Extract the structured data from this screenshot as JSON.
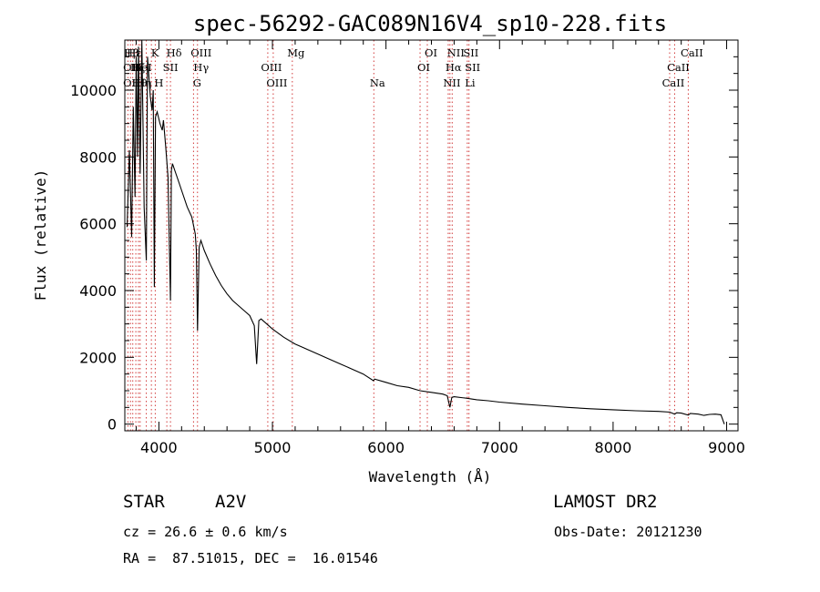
{
  "chart_data": {
    "type": "line",
    "title": "spec-56292-GAC089N16V4_sp10-228.fits",
    "xlabel": "Wavelength (Å)",
    "ylabel": "Flux (relative)",
    "xlim": [
      3700,
      9100
    ],
    "ylim": [
      -200,
      11500
    ],
    "xticks": [
      4000,
      5000,
      6000,
      7000,
      8000,
      9000
    ],
    "yticks": [
      0,
      2000,
      4000,
      6000,
      8000,
      10000
    ],
    "grid": false,
    "legend": "none",
    "colors": {
      "spectrum": "#000000",
      "line_markers": "#d23c3c",
      "axes": "#000000"
    },
    "series": [
      {
        "values": [
          [
            3720,
            5900
          ],
          [
            3740,
            8200
          ],
          [
            3760,
            5600
          ],
          [
            3775,
            9500
          ],
          [
            3790,
            6800
          ],
          [
            3800,
            11000
          ],
          [
            3812,
            8000
          ],
          [
            3820,
            11300
          ],
          [
            3835,
            7500
          ],
          [
            3850,
            11500
          ],
          [
            3870,
            6500
          ],
          [
            3889,
            4900
          ],
          [
            3900,
            11000
          ],
          [
            3910,
            10500
          ],
          [
            3925,
            9800
          ],
          [
            3940,
            9400
          ],
          [
            3950,
            10000
          ],
          [
            3960,
            4100
          ],
          [
            3970,
            9200
          ],
          [
            3985,
            9350
          ],
          [
            4010,
            9000
          ],
          [
            4030,
            8800
          ],
          [
            4040,
            9100
          ],
          [
            4060,
            8300
          ],
          [
            4080,
            7400
          ],
          [
            4102,
            3700
          ],
          [
            4110,
            7600
          ],
          [
            4120,
            7800
          ],
          [
            4140,
            7600
          ],
          [
            4170,
            7300
          ],
          [
            4200,
            7000
          ],
          [
            4250,
            6500
          ],
          [
            4290,
            6200
          ],
          [
            4320,
            5700
          ],
          [
            4330,
            5200
          ],
          [
            4340,
            2800
          ],
          [
            4355,
            5300
          ],
          [
            4370,
            5500
          ],
          [
            4400,
            5200
          ],
          [
            4450,
            4800
          ],
          [
            4500,
            4450
          ],
          [
            4550,
            4150
          ],
          [
            4600,
            3900
          ],
          [
            4650,
            3700
          ],
          [
            4700,
            3550
          ],
          [
            4750,
            3400
          ],
          [
            4800,
            3250
          ],
          [
            4840,
            2950
          ],
          [
            4861,
            1800
          ],
          [
            4880,
            3100
          ],
          [
            4900,
            3150
          ],
          [
            4950,
            3000
          ],
          [
            5000,
            2850
          ],
          [
            5100,
            2600
          ],
          [
            5200,
            2400
          ],
          [
            5300,
            2250
          ],
          [
            5400,
            2100
          ],
          [
            5500,
            1950
          ],
          [
            5600,
            1800
          ],
          [
            5700,
            1650
          ],
          [
            5800,
            1500
          ],
          [
            5890,
            1300
          ],
          [
            5900,
            1350
          ],
          [
            6000,
            1250
          ],
          [
            6100,
            1150
          ],
          [
            6200,
            1100
          ],
          [
            6300,
            1000
          ],
          [
            6400,
            950
          ],
          [
            6500,
            900
          ],
          [
            6540,
            850
          ],
          [
            6563,
            500
          ],
          [
            6580,
            800
          ],
          [
            6600,
            820
          ],
          [
            6700,
            780
          ],
          [
            6800,
            730
          ],
          [
            6900,
            700
          ],
          [
            7000,
            660
          ],
          [
            7200,
            600
          ],
          [
            7400,
            550
          ],
          [
            7600,
            500
          ],
          [
            7800,
            460
          ],
          [
            8000,
            430
          ],
          [
            8200,
            400
          ],
          [
            8400,
            380
          ],
          [
            8500,
            360
          ],
          [
            8542,
            300
          ],
          [
            8560,
            340
          ],
          [
            8600,
            330
          ],
          [
            8662,
            270
          ],
          [
            8680,
            320
          ],
          [
            8750,
            300
          ],
          [
            8800,
            260
          ],
          [
            8850,
            290
          ],
          [
            8900,
            300
          ],
          [
            8950,
            280
          ],
          [
            8980,
            0
          ]
        ]
      }
    ],
    "spectral_lines": [
      {
        "rows": [
          "Hβ",
          "OII",
          "OII"
        ],
        "x": [
          3727,
          3727,
          3727
        ]
      },
      {
        "rows": [
          "Hε",
          "Hζ",
          "Hθ"
        ],
        "x": [
          3750,
          3780,
          3797
        ]
      },
      {
        "rows": [
          "K",
          "HeI",
          "Hη"
        ],
        "x": [
          3934,
          3820,
          3835
        ]
      },
      {
        "rows": [
          "Hδ",
          "SII",
          "H"
        ],
        "x": [
          4102,
          4070,
          3968
        ]
      },
      {
        "rows": [
          "OIII",
          "Hγ",
          "G"
        ],
        "x": [
          4340,
          4340,
          4305
        ]
      },
      {
        "rows": [
          "Mg",
          "OIII",
          "OIII"
        ],
        "x": [
          5175,
          4959,
          5007
        ]
      },
      {
        "rows": [
          "",
          "",
          "Na"
        ],
        "x": [
          5893,
          5893,
          5893
        ]
      },
      {
        "rows": [
          "OI",
          "OI",
          ""
        ],
        "x": [
          6364,
          6300,
          6300
        ]
      },
      {
        "rows": [
          "NII",
          "Hα",
          "NII"
        ],
        "x": [
          6583,
          6563,
          6548
        ]
      },
      {
        "rows": [
          "SII",
          "SII",
          "Li"
        ],
        "x": [
          6716,
          6731,
          6708
        ]
      },
      {
        "rows": [
          "CaII",
          "CaII",
          "CaII"
        ],
        "x": [
          8662,
          8542,
          8498
        ]
      }
    ],
    "line_marker_x": [
      3727,
      3750,
      3770,
      3797,
      3820,
      3835,
      3889,
      3934,
      3968,
      4070,
      4102,
      4305,
      4340,
      4959,
      5007,
      5175,
      5893,
      6300,
      6364,
      6548,
      6563,
      6583,
      6716,
      6731,
      8498,
      8542,
      8662
    ]
  },
  "info": {
    "object_label": "STAR",
    "class_label": "A2V",
    "survey": "LAMOST DR2",
    "cz": "cz = 26.6 ± 0.6 km/s",
    "obs_date": "Obs-Date: 20121230",
    "coords": "RA =  87.51015, DEC =  16.01546"
  }
}
